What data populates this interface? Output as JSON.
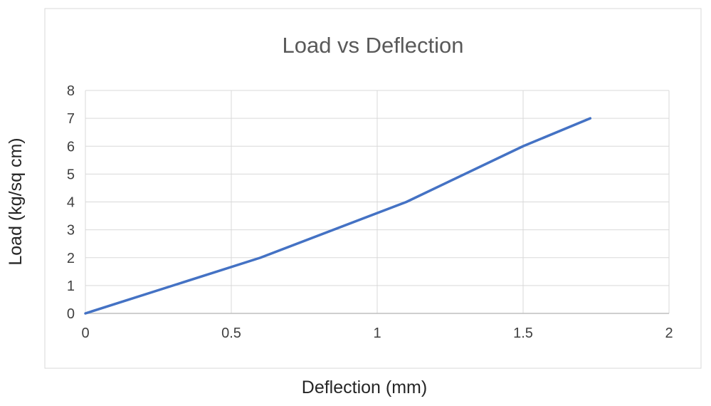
{
  "chart_data": {
    "type": "line",
    "title": "Load vs Deflection",
    "xlabel": "Deflection (mm)",
    "ylabel": "Load (kg/sq cm)",
    "x": [
      0,
      0.3,
      0.6,
      1.1,
      1.5,
      1.73
    ],
    "series": [
      {
        "name": "Load",
        "values": [
          0,
          1,
          2,
          4,
          6,
          7
        ]
      }
    ],
    "xlim": [
      0,
      2
    ],
    "ylim": [
      0,
      8
    ],
    "xticks": [
      0,
      0.5,
      1,
      1.5,
      2
    ],
    "xtick_labels": [
      "0",
      "0.5",
      "1",
      "1.5",
      "2"
    ],
    "yticks": [
      0,
      1,
      2,
      3,
      4,
      5,
      6,
      7,
      8
    ],
    "ytick_labels": [
      "0",
      "1",
      "2",
      "3",
      "4",
      "5",
      "6",
      "7",
      "8"
    ],
    "grid": true,
    "legend": "none",
    "line_color": "#4472C4",
    "line_width": 3.5,
    "gridline_color": "#D9D9D9",
    "axis_color": "#BFBFBF",
    "border_color": "#D9D9D9",
    "title_color": "#595959",
    "tick_color": "#404040",
    "axis_title_color": "#262626"
  }
}
